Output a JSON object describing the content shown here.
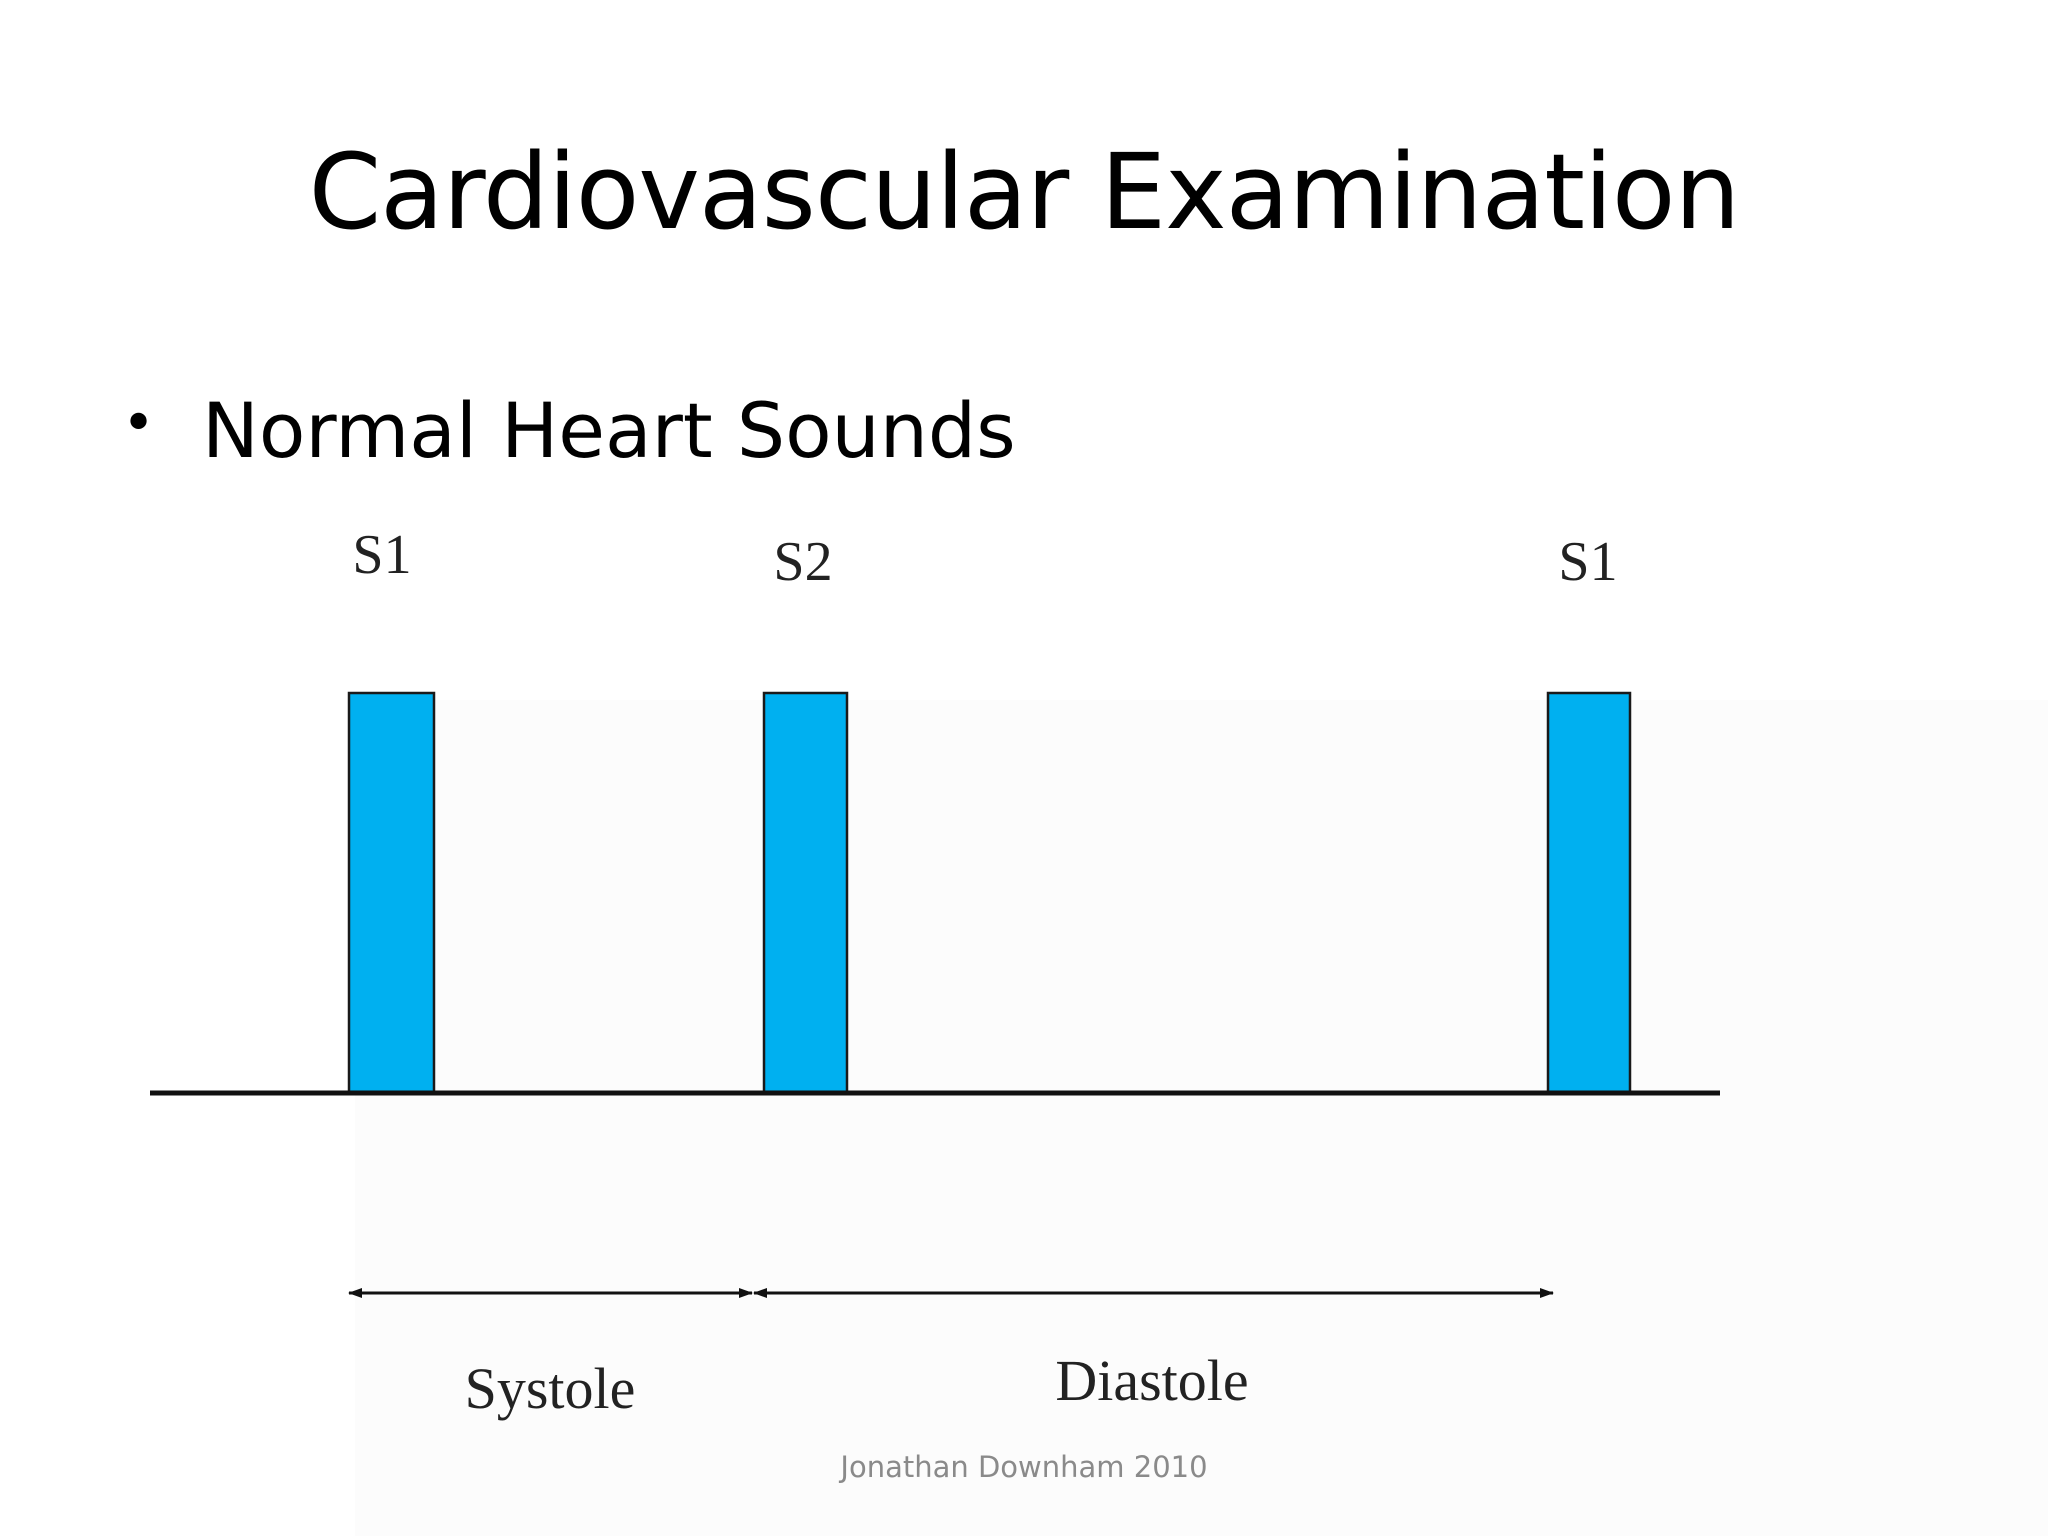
{
  "slide": {
    "title": "Cardiovascular Examination",
    "bullet": "Normal Heart Sounds",
    "footer": "Jonathan Downham 2010"
  },
  "diagram": {
    "sounds": [
      {
        "label": "S1"
      },
      {
        "label": "S2"
      },
      {
        "label": "S1"
      }
    ],
    "phases": [
      {
        "label": "Systole"
      },
      {
        "label": "Diastole"
      }
    ],
    "colors": {
      "bar_fill": "#00b0f0",
      "bar_stroke": "#1a1a1a",
      "baseline": "#111111"
    }
  }
}
